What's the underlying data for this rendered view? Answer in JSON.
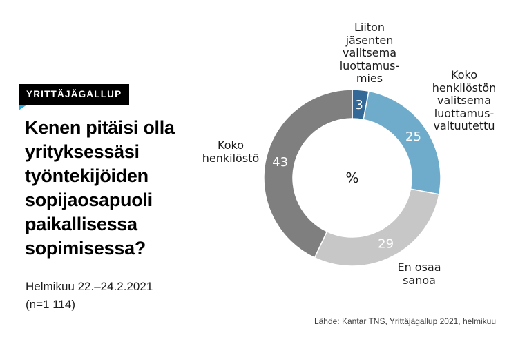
{
  "badge": {
    "label": "YRITTÄJÄGALLUP"
  },
  "title": {
    "text": "Kenen pitäisi olla\nyrityksessäsi\ntyöntekijöiden\nsopijaosapuoli\npaikallisessa\nsopimisessa?"
  },
  "meta": {
    "period": "Helmikuu 22.–24.2.2021",
    "sample_size": "(n=1 114)"
  },
  "source": {
    "text": "Lähde: Kantar TNS, Yrittäjägallup 2021, helmikuu"
  },
  "chart_data": {
    "type": "pie",
    "variant": "donut",
    "unit": "%",
    "center_label": "%",
    "start_angle_deg": 0,
    "direction": "clockwise",
    "title": "Kenen pitäisi olla yrityksessäsi työntekijöiden sopijaosapuoli paikallisessa sopimisessa?",
    "segments": [
      {
        "label": "Liiton jäsenten valitsema luottamusmies",
        "callout": "Liiton\njäsenten\nvalitsema\nluottamus-\nmies",
        "value": 3,
        "color": "#346896"
      },
      {
        "label": "Koko henkilöstön valitsema luottamusvaltuutettu",
        "callout": "Koko\nhenkilöstön\nvalitsema\nluottamus-\nvaltuutettu",
        "value": 25,
        "color": "#6fabcb"
      },
      {
        "label": "En osaa sanoa",
        "callout": "En osaa\nsanoa",
        "value": 29,
        "color": "#c7c7c7"
      },
      {
        "label": "Koko henkilöstö",
        "callout": "Koko\nhenkilöstö",
        "value": 43,
        "color": "#7f7f7f"
      }
    ],
    "geometry": {
      "outer_radius": 128,
      "inner_radius": 86,
      "value_label_fill": "#ffffff"
    }
  }
}
